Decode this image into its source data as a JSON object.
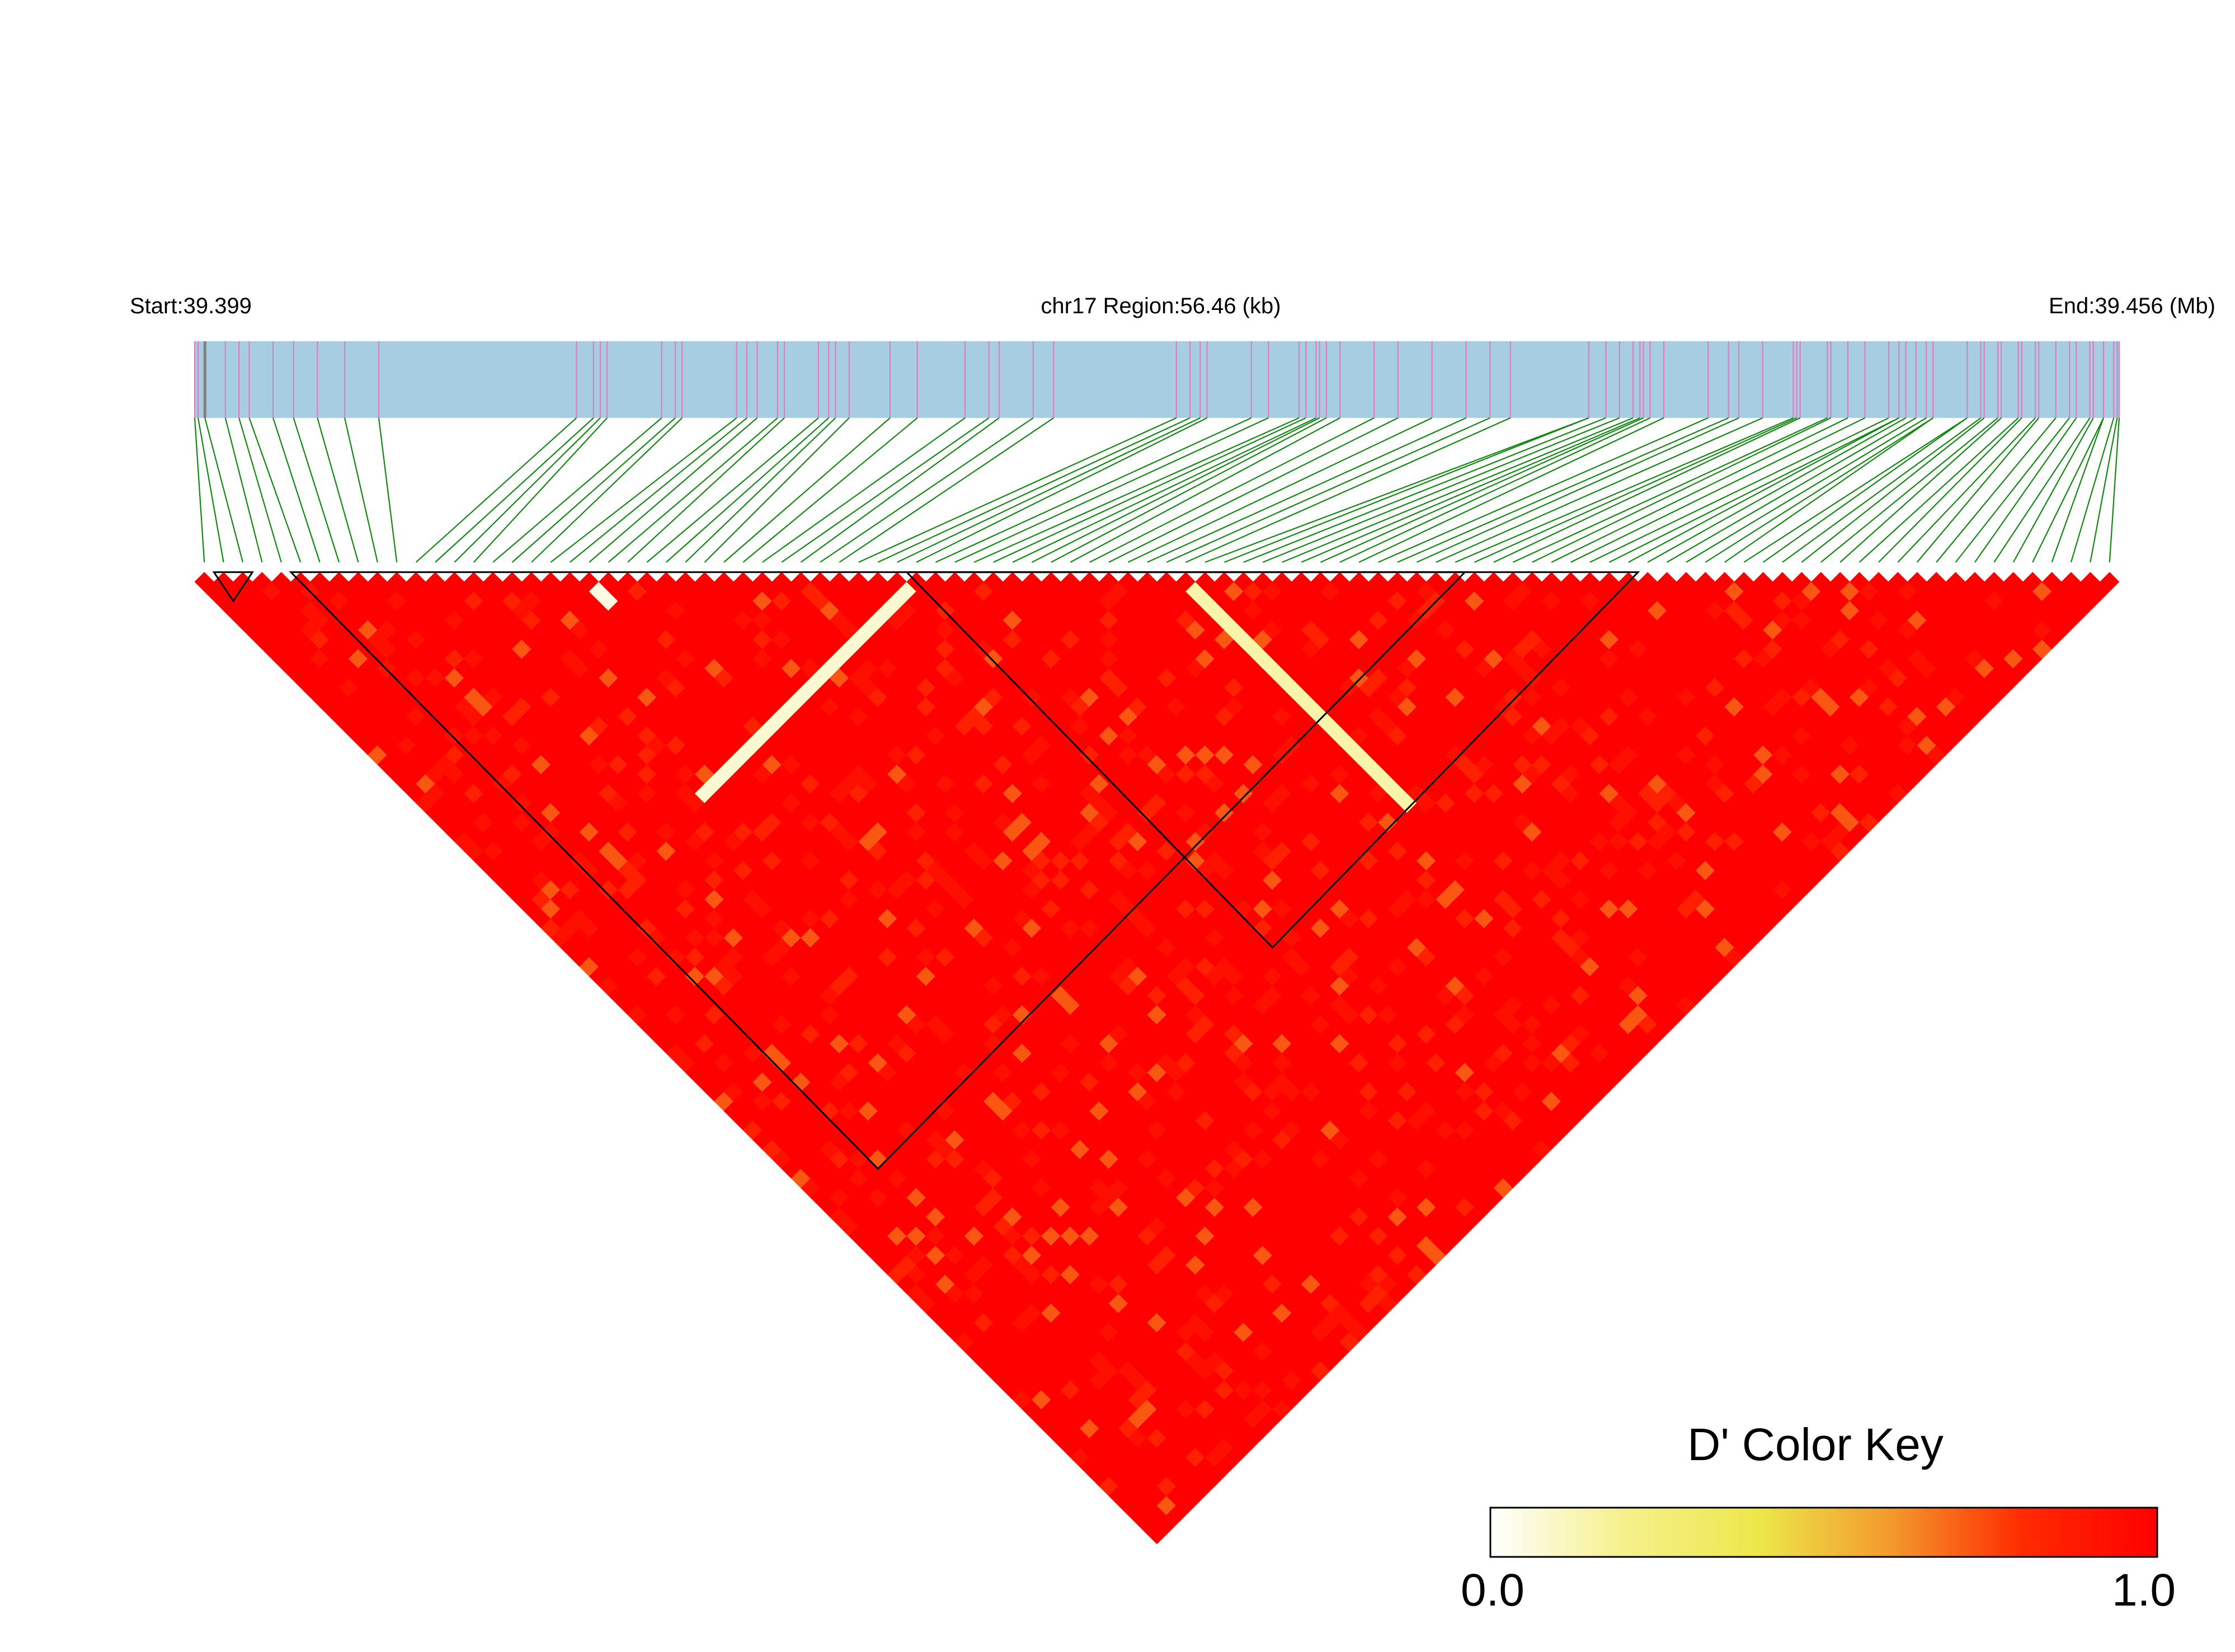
{
  "chart_data": {
    "type": "heatmap",
    "subtype": "linkage-disequilibrium-triangle",
    "chromosome": "chr17",
    "start_label": "Start:39.399",
    "region_label": "chr17 Region:56.46 (kb)",
    "end_label": "End:39.456 (Mb)",
    "start_mb": 39.399,
    "end_mb": 39.456,
    "region_kb": 56.46,
    "n_snps": 100,
    "snp_positions_kb": [
      0.0,
      0.1,
      0.3,
      0.9,
      1.3,
      1.6,
      2.3,
      2.9,
      3.6,
      4.4,
      5.4,
      11.2,
      11.7,
      11.9,
      12.1,
      13.7,
      14.1,
      14.3,
      15.9,
      16.2,
      16.5,
      17.1,
      17.3,
      18.3,
      18.6,
      18.8,
      19.2,
      20.4,
      21.2,
      22.6,
      23.3,
      23.6,
      24.6,
      25.2,
      28.8,
      29.2,
      29.5,
      29.7,
      31.0,
      31.5,
      32.4,
      32.6,
      32.9,
      33.0,
      33.2,
      33.6,
      34.6,
      35.3,
      36.3,
      37.3,
      38.0,
      38.6,
      40.9,
      40.9,
      41.4,
      41.8,
      42.2,
      42.4,
      42.5,
      42.7,
      43.1,
      44.4,
      45.3,
      46.9,
      47.1,
      47.9,
      48.5,
      49.7,
      50.0,
      50.2,
      50.5,
      50.8,
      51.0,
      52.0,
      52.4,
      52.5,
      52.9,
      53.5,
      53.6,
      54.1,
      54.6,
      55.2,
      55.6,
      55.7,
      56.0,
      56.3,
      56.4,
      56.46,
      45.0,
      46.0,
      47.0,
      48.0,
      49.0,
      50.0,
      51.0,
      52.0,
      53.0,
      54.0,
      55.0,
      56.0
    ],
    "haplotype_blocks": [
      {
        "first_snp": 1,
        "last_snp": 2
      },
      {
        "first_snp": 5,
        "last_snp": 65
      },
      {
        "first_snp": 37,
        "last_snp": 74
      }
    ],
    "notable_low_pairs": [
      {
        "snp": 37,
        "partner_range": [
          15,
          36
        ],
        "dprime": 0.08
      },
      {
        "snp": 51,
        "partner_range": [
          52,
          74
        ],
        "dprime": 0.15
      },
      {
        "snp": 20,
        "partner_range": [
          21,
          22
        ],
        "dprime": 0.05
      }
    ],
    "dprime_default": 1.0,
    "legend": {
      "title": "D' Color Key",
      "min_label": "0.0",
      "max_label": "1.0",
      "range": [
        0,
        1
      ],
      "colors": [
        "#ffffff",
        "#f5f08c",
        "#ede84a",
        "#f39a2c",
        "#ff2a00",
        "#ff0000"
      ]
    },
    "colors": {
      "gene_band": "#a6cde0",
      "snp_tick": "#e07cc4",
      "snp_tick_dark": "#808080",
      "connector": "#118811",
      "high_ld": "#ff0000"
    }
  }
}
